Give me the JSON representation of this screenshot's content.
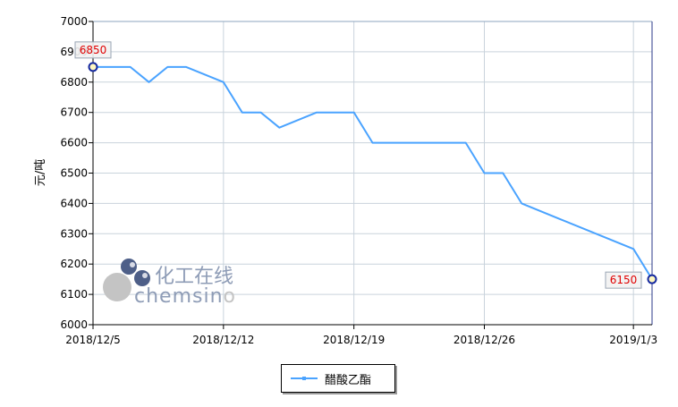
{
  "chart_data": {
    "type": "line",
    "ylabel": "元/吨",
    "xlabel": "",
    "title": "",
    "ylim": [
      6000,
      7000
    ],
    "yticks": [
      6000,
      6100,
      6200,
      6300,
      6400,
      6500,
      6600,
      6700,
      6800,
      6900,
      7000
    ],
    "xlim": [
      "2018-12-05",
      "2019-01-04"
    ],
    "xticks": [
      {
        "date": "2018-12-05",
        "label": "2018/12/5"
      },
      {
        "date": "2018-12-12",
        "label": "2018/12/12"
      },
      {
        "date": "2018-12-19",
        "label": "2018/12/19"
      },
      {
        "date": "2018-12-26",
        "label": "2018/12/26"
      },
      {
        "date": "2019-01-03",
        "label": "2019/1/3"
      }
    ],
    "grid": true,
    "legend_position": "bottom-center",
    "series": [
      {
        "name": "醋酸乙酯",
        "color": "#4aa3ff",
        "points": [
          {
            "x": "2018-12-05",
            "y": 6850
          },
          {
            "x": "2018-12-06",
            "y": 6850
          },
          {
            "x": "2018-12-07",
            "y": 6850
          },
          {
            "x": "2018-12-08",
            "y": 6800
          },
          {
            "x": "2018-12-09",
            "y": 6850
          },
          {
            "x": "2018-12-10",
            "y": 6850
          },
          {
            "x": "2018-12-12",
            "y": 6800
          },
          {
            "x": "2018-12-13",
            "y": 6700
          },
          {
            "x": "2018-12-14",
            "y": 6700
          },
          {
            "x": "2018-12-15",
            "y": 6650
          },
          {
            "x": "2018-12-17",
            "y": 6700
          },
          {
            "x": "2018-12-19",
            "y": 6700
          },
          {
            "x": "2018-12-20",
            "y": 6600
          },
          {
            "x": "2018-12-21",
            "y": 6600
          },
          {
            "x": "2018-12-24",
            "y": 6600
          },
          {
            "x": "2018-12-25",
            "y": 6600
          },
          {
            "x": "2018-12-26",
            "y": 6500
          },
          {
            "x": "2018-12-27",
            "y": 6500
          },
          {
            "x": "2018-12-28",
            "y": 6400
          },
          {
            "x": "2018-12-30",
            "y": 6350
          },
          {
            "x": "2019-01-03",
            "y": 6250
          },
          {
            "x": "2019-01-04",
            "y": 6150
          }
        ]
      }
    ],
    "annotations": [
      {
        "label": "6850"
      },
      {
        "label": "6150"
      }
    ]
  },
  "watermark": {
    "cn": "化工在线",
    "en_main": "chemsin",
    "en_tail": "o"
  }
}
